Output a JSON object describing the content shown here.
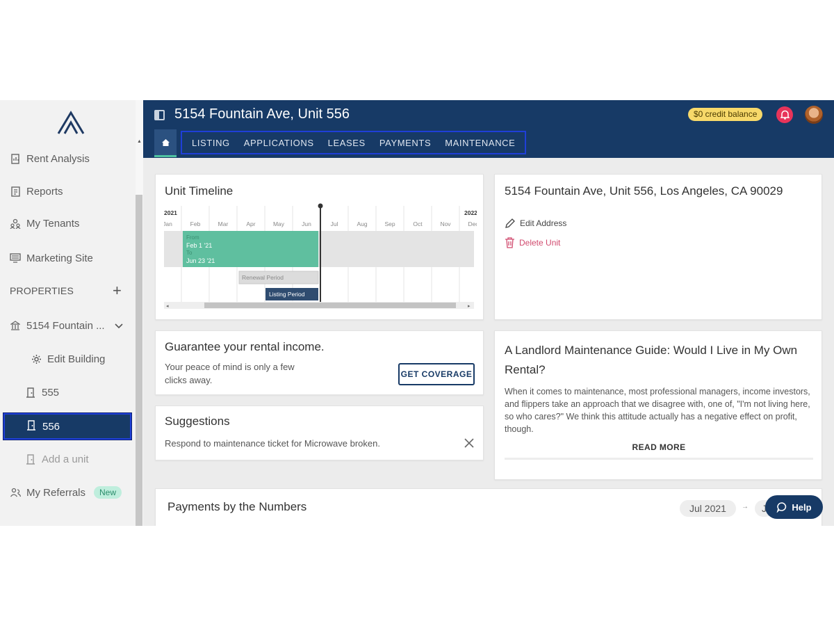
{
  "sidebar": {
    "items": [
      {
        "label": "Rent Analysis",
        "icon": "document-chart-icon"
      },
      {
        "label": "Reports",
        "icon": "report-icon"
      },
      {
        "label": "My Tenants",
        "icon": "people-icon"
      },
      {
        "label": "Marketing Site",
        "icon": "monitor-icon"
      }
    ],
    "section_label": "PROPERTIES",
    "property": {
      "label": "5154 Fountain ...",
      "icon": "building-icon"
    },
    "edit_building": "Edit Building",
    "units": [
      "555",
      "556"
    ],
    "add_unit": "Add a unit",
    "referrals": {
      "label": "My Referrals",
      "badge": "New"
    }
  },
  "header": {
    "title": "5154 Fountain Ave, Unit 556",
    "credit": "$0 credit balance",
    "tabs": [
      "LISTING",
      "APPLICATIONS",
      "LEASES",
      "PAYMENTS",
      "MAINTENANCE"
    ]
  },
  "timeline": {
    "title": "Unit Timeline",
    "year_left": "2021",
    "year_right": "2022",
    "months": [
      "Jan",
      "Feb",
      "Mar",
      "Apr",
      "May",
      "Jun",
      "Jul",
      "Aug",
      "Sep",
      "Oct",
      "Nov",
      "Dec"
    ],
    "lease": {
      "from_label": "From",
      "from": "Feb 1 '21",
      "to_label": "To",
      "to": "Jun 23 '21"
    },
    "renewal_label": "Renewal Period",
    "listing_label": "Listing Period"
  },
  "unit_info": {
    "address": "5154 Fountain Ave, Unit 556, Los Angeles, CA 90029",
    "edit_address": "Edit Address",
    "delete_unit": "Delete Unit"
  },
  "guarantee": {
    "title": "Guarantee your rental income.",
    "body": "Your peace of mind is only a few clicks away.",
    "button": "GET COVERAGE"
  },
  "suggestions": {
    "title": "Suggestions",
    "item": "Respond to maintenance ticket for Microwave broken."
  },
  "article": {
    "title": "A Landlord Maintenance Guide: Would I Live in My Own Rental?",
    "body": "When it comes to maintenance, most professional managers, income investors, and flippers take an approach that we disagree with, one of, \"I'm not living here, so who cares?\" We think this attitude actually has a negative effect on profit, though.",
    "read_more": "READ MORE"
  },
  "payments": {
    "title": "Payments by the Numbers",
    "period_start": "Jul 2021",
    "period_end": "J"
  },
  "help": {
    "label": "Help"
  },
  "colors": {
    "navy": "#173a66",
    "accent_green": "#4fc3a1",
    "lease_bar": "#5fbf9f",
    "danger": "#d14a6e",
    "credit_badge": "#f7d96a"
  }
}
